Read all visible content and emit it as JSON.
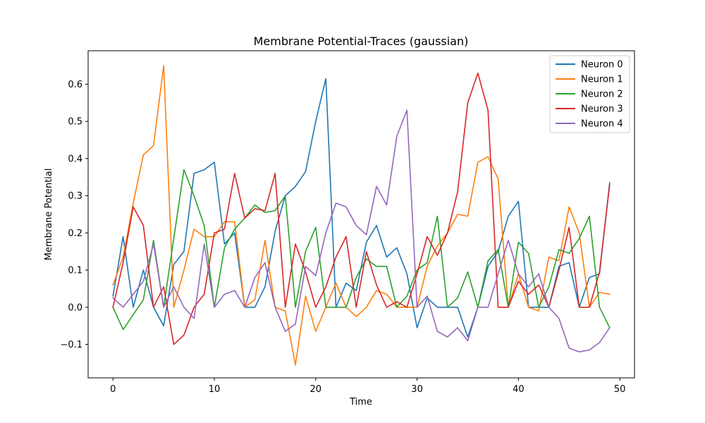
{
  "chart_data": {
    "type": "line",
    "title": "Membrane Potential-Traces (gaussian)",
    "xlabel": "Time",
    "ylabel": "Membrane Potential",
    "xlim": [
      -2.45,
      51.45
    ],
    "ylim": [
      -0.19,
      0.69
    ],
    "xticks": [
      0,
      10,
      20,
      30,
      40,
      50
    ],
    "yticks": [
      -0.1,
      0.0,
      0.1,
      0.2,
      0.3,
      0.4,
      0.5,
      0.6
    ],
    "ytick_labels": [
      "−0.1",
      "0.0",
      "0.1",
      "0.2",
      "0.3",
      "0.4",
      "0.5",
      "0.6"
    ],
    "grid": false,
    "legend_position": "top-right",
    "x": [
      0,
      1,
      2,
      3,
      4,
      5,
      6,
      7,
      8,
      9,
      10,
      11,
      12,
      13,
      14,
      15,
      16,
      17,
      18,
      19,
      20,
      21,
      22,
      23,
      24,
      25,
      26,
      27,
      28,
      29,
      30,
      31,
      32,
      33,
      34,
      35,
      36,
      37,
      38,
      39,
      40,
      41,
      42,
      43,
      44,
      45,
      46,
      47,
      48,
      49
    ],
    "series": [
      {
        "name": "Neuron 0",
        "color": "#1f77b4",
        "values": [
          0.03,
          0.19,
          0.0,
          0.1,
          0.0,
          -0.05,
          0.115,
          0.15,
          0.36,
          0.37,
          0.39,
          0.17,
          0.2,
          0.0,
          0.0,
          0.055,
          0.205,
          0.3,
          0.325,
          0.365,
          0.5,
          0.615,
          0.0,
          0.065,
          0.045,
          0.175,
          0.22,
          0.135,
          0.16,
          0.09,
          -0.055,
          0.025,
          0.0,
          0.0,
          0.0,
          -0.08,
          0.0,
          0.11,
          0.15,
          0.245,
          0.285,
          0.0,
          0.0,
          0.0,
          0.11,
          0.12,
          0.0,
          0.08,
          0.09,
          0.335
        ]
      },
      {
        "name": "Neuron 1",
        "color": "#ff7f0e",
        "values": [
          0.06,
          0.135,
          0.28,
          0.41,
          0.435,
          0.65,
          0.0,
          0.1,
          0.21,
          0.19,
          0.19,
          0.23,
          0.23,
          0.0,
          0.02,
          0.18,
          0.0,
          -0.01,
          -0.155,
          0.03,
          -0.065,
          0.0,
          0.065,
          0.0,
          -0.025,
          0.0,
          0.045,
          0.035,
          0.0,
          0.0,
          0.0,
          0.11,
          0.165,
          0.2,
          0.25,
          0.245,
          0.39,
          0.405,
          0.345,
          0.0,
          0.09,
          0.0,
          -0.01,
          0.135,
          0.125,
          0.27,
          0.2,
          0.0,
          0.04,
          0.035
        ]
      },
      {
        "name": "Neuron 2",
        "color": "#2ca02c",
        "values": [
          0.0,
          -0.06,
          -0.02,
          0.02,
          0.18,
          0.0,
          0.185,
          0.37,
          0.3,
          0.22,
          0.0,
          0.16,
          0.21,
          0.24,
          0.275,
          0.255,
          0.26,
          0.3,
          0.0,
          0.15,
          0.215,
          0.0,
          0.0,
          0.0,
          0.08,
          0.13,
          0.11,
          0.11,
          0.0,
          0.03,
          0.1,
          0.12,
          0.245,
          0.0,
          0.025,
          0.095,
          0.0,
          0.125,
          0.155,
          0.0,
          0.175,
          0.145,
          0.0,
          0.055,
          0.155,
          0.145,
          0.185,
          0.245,
          0.0,
          -0.055
        ]
      },
      {
        "name": "Neuron 3",
        "color": "#d62728",
        "values": [
          0.0,
          0.12,
          0.27,
          0.22,
          0.0,
          0.055,
          -0.1,
          -0.075,
          0.0,
          0.035,
          0.2,
          0.21,
          0.36,
          0.24,
          0.265,
          0.26,
          0.36,
          0.0,
          0.17,
          0.095,
          0.0,
          0.055,
          0.135,
          0.19,
          0.0,
          0.15,
          0.06,
          0.0,
          0.015,
          0.0,
          0.09,
          0.19,
          0.14,
          0.2,
          0.31,
          0.55,
          0.63,
          0.53,
          0.0,
          0.0,
          0.07,
          0.035,
          0.06,
          0.0,
          0.1,
          0.215,
          0.0,
          0.0,
          0.095,
          0.33
        ]
      },
      {
        "name": "Neuron 4",
        "color": "#9467bd",
        "values": [
          0.025,
          0.0,
          0.035,
          0.07,
          0.17,
          0.0,
          0.055,
          0.0,
          -0.03,
          0.17,
          0.0,
          0.035,
          0.045,
          0.0,
          0.08,
          0.12,
          0.0,
          -0.065,
          -0.045,
          0.11,
          0.085,
          0.2,
          0.28,
          0.27,
          0.22,
          0.195,
          0.325,
          0.275,
          0.46,
          0.53,
          0.0,
          0.03,
          -0.065,
          -0.08,
          -0.055,
          -0.09,
          0.0,
          0.0,
          0.09,
          0.18,
          0.09,
          0.055,
          0.09,
          0.0,
          -0.03,
          -0.11,
          -0.12,
          -0.115,
          -0.095,
          -0.055
        ]
      }
    ]
  }
}
